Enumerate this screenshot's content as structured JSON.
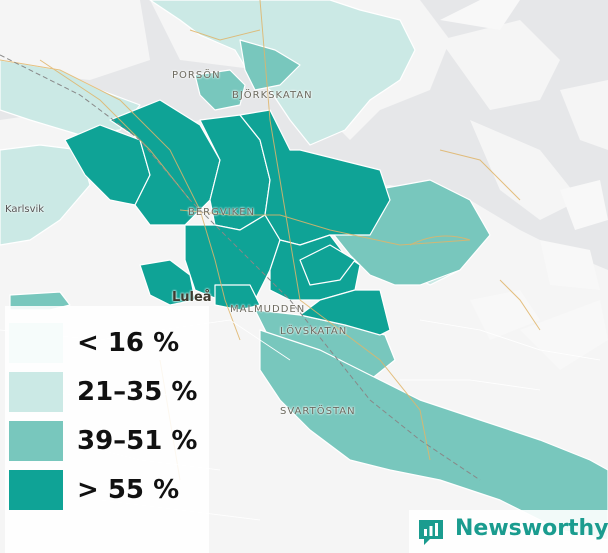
{
  "map": {
    "places": [
      {
        "id": "porson",
        "label": "PORSÖN"
      },
      {
        "id": "bjorkskatan",
        "label": "BJÖRKSKATAN"
      },
      {
        "id": "karlsvik",
        "label": "Karlsvik"
      },
      {
        "id": "bergviken",
        "label": "BERGVIKEN"
      },
      {
        "id": "lulea",
        "label": "Luleå"
      },
      {
        "id": "malmudden",
        "label": "MALMUDDEN"
      },
      {
        "id": "lovskatan",
        "label": "LÖVSKATAN"
      },
      {
        "id": "svartostan",
        "label": "SVARTÖSTAN"
      }
    ]
  },
  "legend": {
    "items": [
      {
        "label": "< 16 %",
        "color": "#f6fcfb"
      },
      {
        "label": "21–35 %",
        "color": "#cbe9e5"
      },
      {
        "label": "39–51 %",
        "color": "#78c7bd"
      },
      {
        "label": "> 55 %",
        "color": "#0fa396"
      }
    ]
  },
  "brand": {
    "name": "Newsworthy",
    "icon": "bar-chart-speech-bubble-icon",
    "color": "#1a9c8f"
  },
  "colors": {
    "background": "#e8e9eb",
    "land": "#f4f4f4",
    "roads": "#e0b56a",
    "borders": "#ffffff"
  }
}
